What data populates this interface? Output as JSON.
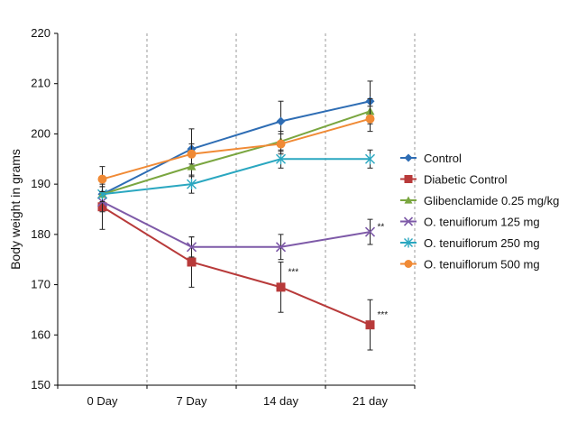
{
  "chart_data": {
    "type": "line",
    "title": "",
    "xlabel": "",
    "ylabel": "Body weight in grams",
    "categories": [
      "0 Day",
      "7 Day",
      "14 day",
      "21 day"
    ],
    "ylim": [
      150,
      220
    ],
    "yticks": [
      150,
      160,
      170,
      180,
      190,
      200,
      210,
      220
    ],
    "grid": "vertical dashed gridlines",
    "legend_position": "right",
    "series": [
      {
        "name": "Control",
        "values": [
          188,
          197,
          202.5,
          206.5
        ],
        "errors": [
          1.5,
          4,
          4,
          4
        ],
        "color": "#2e6db4",
        "marker": "diamond"
      },
      {
        "name": "Diabetic Control",
        "values": [
          185.5,
          174.5,
          169.5,
          162
        ],
        "errors": [
          4.5,
          5,
          5,
          5
        ],
        "color": "#b83a3a",
        "marker": "square"
      },
      {
        "name": "Glibenclamide 0.25 mg/kg",
        "values": [
          188,
          193.5,
          198.5,
          204.5
        ],
        "errors": [
          1.5,
          2,
          2,
          2.5
        ],
        "color": "#7aa640",
        "marker": "triangle"
      },
      {
        "name": "O. tenuiflorum  125 mg",
        "values": [
          186.5,
          177.5,
          177.5,
          180.5
        ],
        "errors": [
          2,
          2,
          2.5,
          2.5
        ],
        "color": "#7e5aa8",
        "marker": "x"
      },
      {
        "name": "O. tenuiflorum 250 mg",
        "values": [
          188,
          190,
          195,
          195
        ],
        "errors": [
          1.5,
          1.8,
          1.8,
          1.8
        ],
        "color": "#2aa7c0",
        "marker": "asterisk"
      },
      {
        "name": "O. tenuiflorum 500 mg",
        "values": [
          191,
          196,
          198,
          203
        ],
        "errors": [
          2.5,
          2,
          2,
          2.5
        ],
        "color": "#f08a35",
        "marker": "circle"
      }
    ],
    "annotations": [
      {
        "text": "***",
        "category": "14 day",
        "value": 172.5,
        "series": "Diabetic Control"
      },
      {
        "text": "***",
        "category": "21 day",
        "value": 164,
        "series": "Diabetic Control"
      },
      {
        "text": "**",
        "category": "21 day",
        "value": 181.5,
        "series": "O. tenuiflorum  125 mg"
      }
    ]
  }
}
